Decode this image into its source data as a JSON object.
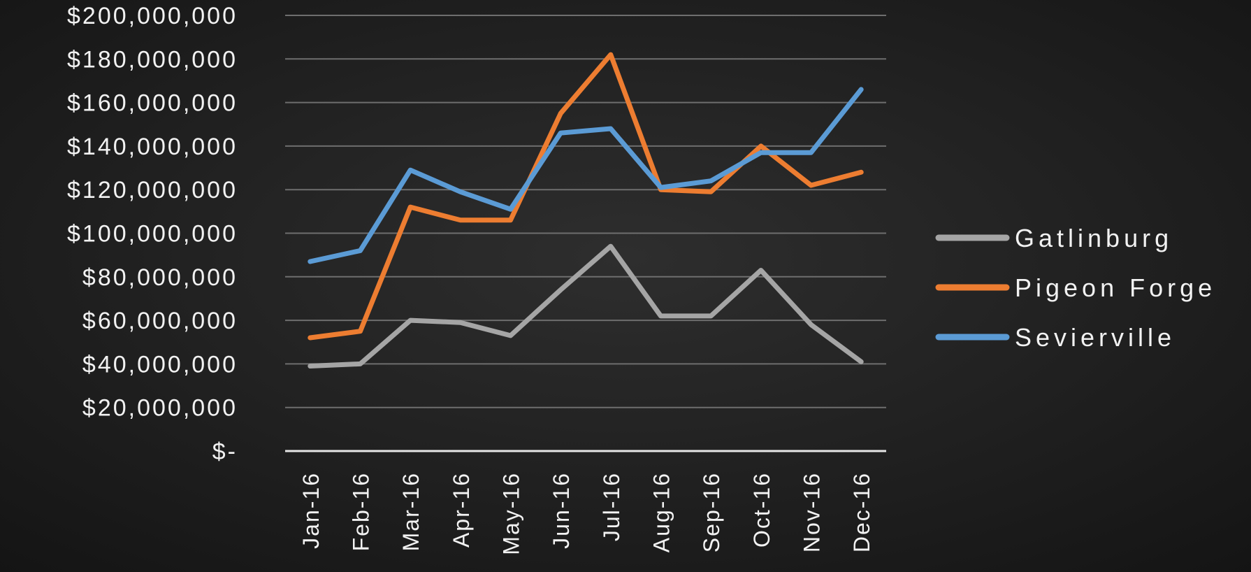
{
  "colors": {
    "background": "#1b1b1b",
    "grid": "#6e6e6e",
    "axis": "#e6e6e6",
    "text": "#f2f2f2"
  },
  "chart_data": {
    "type": "line",
    "categories": [
      "Jan-16",
      "Feb-16",
      "Mar-16",
      "Apr-16",
      "May-16",
      "Jun-16",
      "Jul-16",
      "Aug-16",
      "Sep-16",
      "Oct-16",
      "Nov-16",
      "Dec-16"
    ],
    "ylim": [
      0,
      200000000
    ],
    "ytick_values": [
      0,
      20000000,
      40000000,
      60000000,
      80000000,
      100000000,
      120000000,
      140000000,
      160000000,
      180000000,
      200000000
    ],
    "ytick_labels": [
      "$-",
      "$20,000,000",
      "$40,000,000",
      "$60,000,000",
      "$80,000,000",
      "$100,000,000",
      "$120,000,000",
      "$140,000,000",
      "$160,000,000",
      "$180,000,000",
      "$200,000,000"
    ],
    "grid": true,
    "legend_position": "right",
    "series": [
      {
        "name": "Gatlinburg",
        "color": "#a5a5a5",
        "values": [
          39000000,
          40000000,
          60000000,
          59000000,
          53000000,
          74000000,
          94000000,
          62000000,
          62000000,
          83000000,
          58000000,
          41000000
        ]
      },
      {
        "name": "Pigeon Forge",
        "color": "#ed7d31",
        "values": [
          52000000,
          55000000,
          112000000,
          106000000,
          106000000,
          155000000,
          182000000,
          120000000,
          119000000,
          140000000,
          122000000,
          128000000
        ]
      },
      {
        "name": "Sevierville",
        "color": "#5b9bd5",
        "values": [
          87000000,
          92000000,
          129000000,
          119000000,
          111000000,
          146000000,
          148000000,
          121000000,
          124000000,
          137000000,
          137000000,
          166000000
        ]
      }
    ]
  }
}
